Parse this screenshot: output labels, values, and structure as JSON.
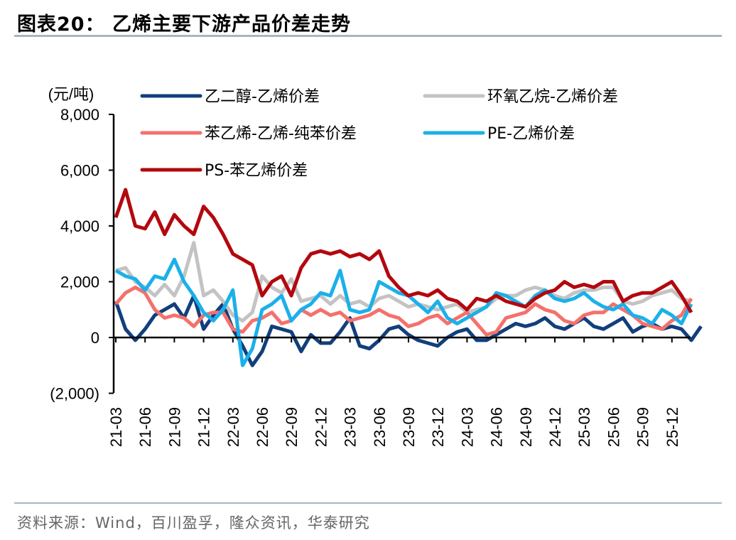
{
  "header": {
    "title": "图表20：  乙烯主要下游产品价差走势"
  },
  "footer": {
    "source": "资料来源：Wind，百川盈孚，隆众资讯，华泰研究"
  },
  "chart_data": {
    "type": "line",
    "title": "",
    "ylabel": "(元/吨)",
    "xlabel": "",
    "ylim": [
      -2000,
      8000
    ],
    "yticks": [
      "(2,000)",
      "0",
      "2,000",
      "4,000",
      "6,000",
      "8,000"
    ],
    "ytick_values": [
      -2000,
      0,
      2000,
      4000,
      6000,
      8000
    ],
    "xticks": [
      "21-03",
      "21-06",
      "21-09",
      "21-12",
      "22-03",
      "22-06",
      "22-09",
      "22-12",
      "23-03",
      "23-06",
      "23-09",
      "23-12",
      "24-03",
      "24-06",
      "24-09",
      "24-12",
      "25-03",
      "25-06",
      "25-09",
      "25-12"
    ],
    "x_start": "2021-03",
    "x_freq": "monthly",
    "grid": false,
    "legend_placement": "top",
    "series": [
      {
        "name": "乙二醇-乙烯价差",
        "color": "#123f7c",
        "values": [
          1300,
          300,
          -100,
          300,
          800,
          1000,
          1200,
          700,
          1500,
          300,
          800,
          1200,
          300,
          -300,
          -1000,
          -500,
          400,
          300,
          200,
          -500,
          100,
          -200,
          -200,
          200,
          700,
          -300,
          -400,
          -100,
          300,
          400,
          100,
          -100,
          -200,
          -300,
          0,
          200,
          300,
          -100,
          -100,
          100,
          300,
          500,
          400,
          500,
          700,
          400,
          300,
          500,
          700,
          400,
          300,
          500,
          700,
          200,
          400,
          500,
          300,
          400,
          300,
          -100,
          400
        ]
      },
      {
        "name": "环氧乙烷-乙烯价差",
        "color": "#c3c3c3",
        "values": [
          2400,
          2500,
          2000,
          1800,
          1500,
          1900,
          1500,
          2200,
          3400,
          1500,
          1700,
          1300,
          800,
          600,
          900,
          2200,
          1800,
          1600,
          2100,
          1300,
          1400,
          1500,
          1200,
          1500,
          1200,
          1300,
          1100,
          1400,
          1500,
          1300,
          1100,
          1200,
          1100,
          1000,
          1100,
          1200,
          900,
          1000,
          1100,
          1400,
          1500,
          1500,
          1700,
          1800,
          1700,
          1500,
          1400,
          1600,
          1700,
          1700,
          1800,
          1800,
          1300,
          1200,
          1300,
          1500,
          1600,
          1700,
          1400,
          1300
        ]
      },
      {
        "name": "苯乙烯-乙烯-纯苯价差",
        "color": "#f4716c",
        "values": [
          1200,
          1600,
          1800,
          1600,
          1000,
          700,
          800,
          700,
          400,
          800,
          900,
          900,
          300,
          200,
          600,
          700,
          900,
          500,
          600,
          1000,
          800,
          1000,
          800,
          900,
          600,
          700,
          800,
          1000,
          800,
          700,
          400,
          500,
          700,
          800,
          500,
          700,
          900,
          500,
          100,
          200,
          700,
          800,
          900,
          1200,
          1000,
          900,
          600,
          500,
          800,
          900,
          900,
          1200,
          1000,
          800,
          500,
          400,
          300,
          600,
          800,
          1400
        ]
      },
      {
        "name": "PE-乙烯价差",
        "color": "#1bb0ea",
        "values": [
          2400,
          2200,
          2100,
          1700,
          2200,
          2100,
          2800,
          2000,
          1500,
          900,
          600,
          1000,
          1700,
          -1000,
          -400,
          1000,
          1200,
          1500,
          600,
          1000,
          1200,
          1600,
          1500,
          2400,
          1000,
          900,
          1000,
          2000,
          1800,
          1600,
          1500,
          1200,
          900,
          1300,
          700,
          500,
          700,
          900,
          1100,
          1600,
          1500,
          1300,
          1100,
          1500,
          1700,
          1400,
          1300,
          1400,
          1600,
          1300,
          1100,
          1000,
          1200,
          800,
          700,
          500,
          1000,
          800,
          500,
          1200
        ]
      },
      {
        "name": "PS-苯乙烯价差",
        "color": "#b3080e",
        "values": [
          4300,
          5300,
          4000,
          3900,
          4500,
          3700,
          4400,
          4000,
          3700,
          4700,
          4300,
          3700,
          3000,
          2800,
          2600,
          1500,
          2000,
          2200,
          1500,
          2500,
          3000,
          3100,
          3000,
          3100,
          2900,
          3000,
          2800,
          3100,
          2200,
          1800,
          1500,
          1600,
          1500,
          1700,
          1400,
          1300,
          1000,
          1400,
          1300,
          1500,
          1300,
          1200,
          1100,
          1400,
          1600,
          1700,
          2000,
          1800,
          1900,
          1800,
          2000,
          2000,
          1300,
          1500,
          1600,
          1600,
          1800,
          2000,
          1500,
          900
        ]
      }
    ]
  }
}
